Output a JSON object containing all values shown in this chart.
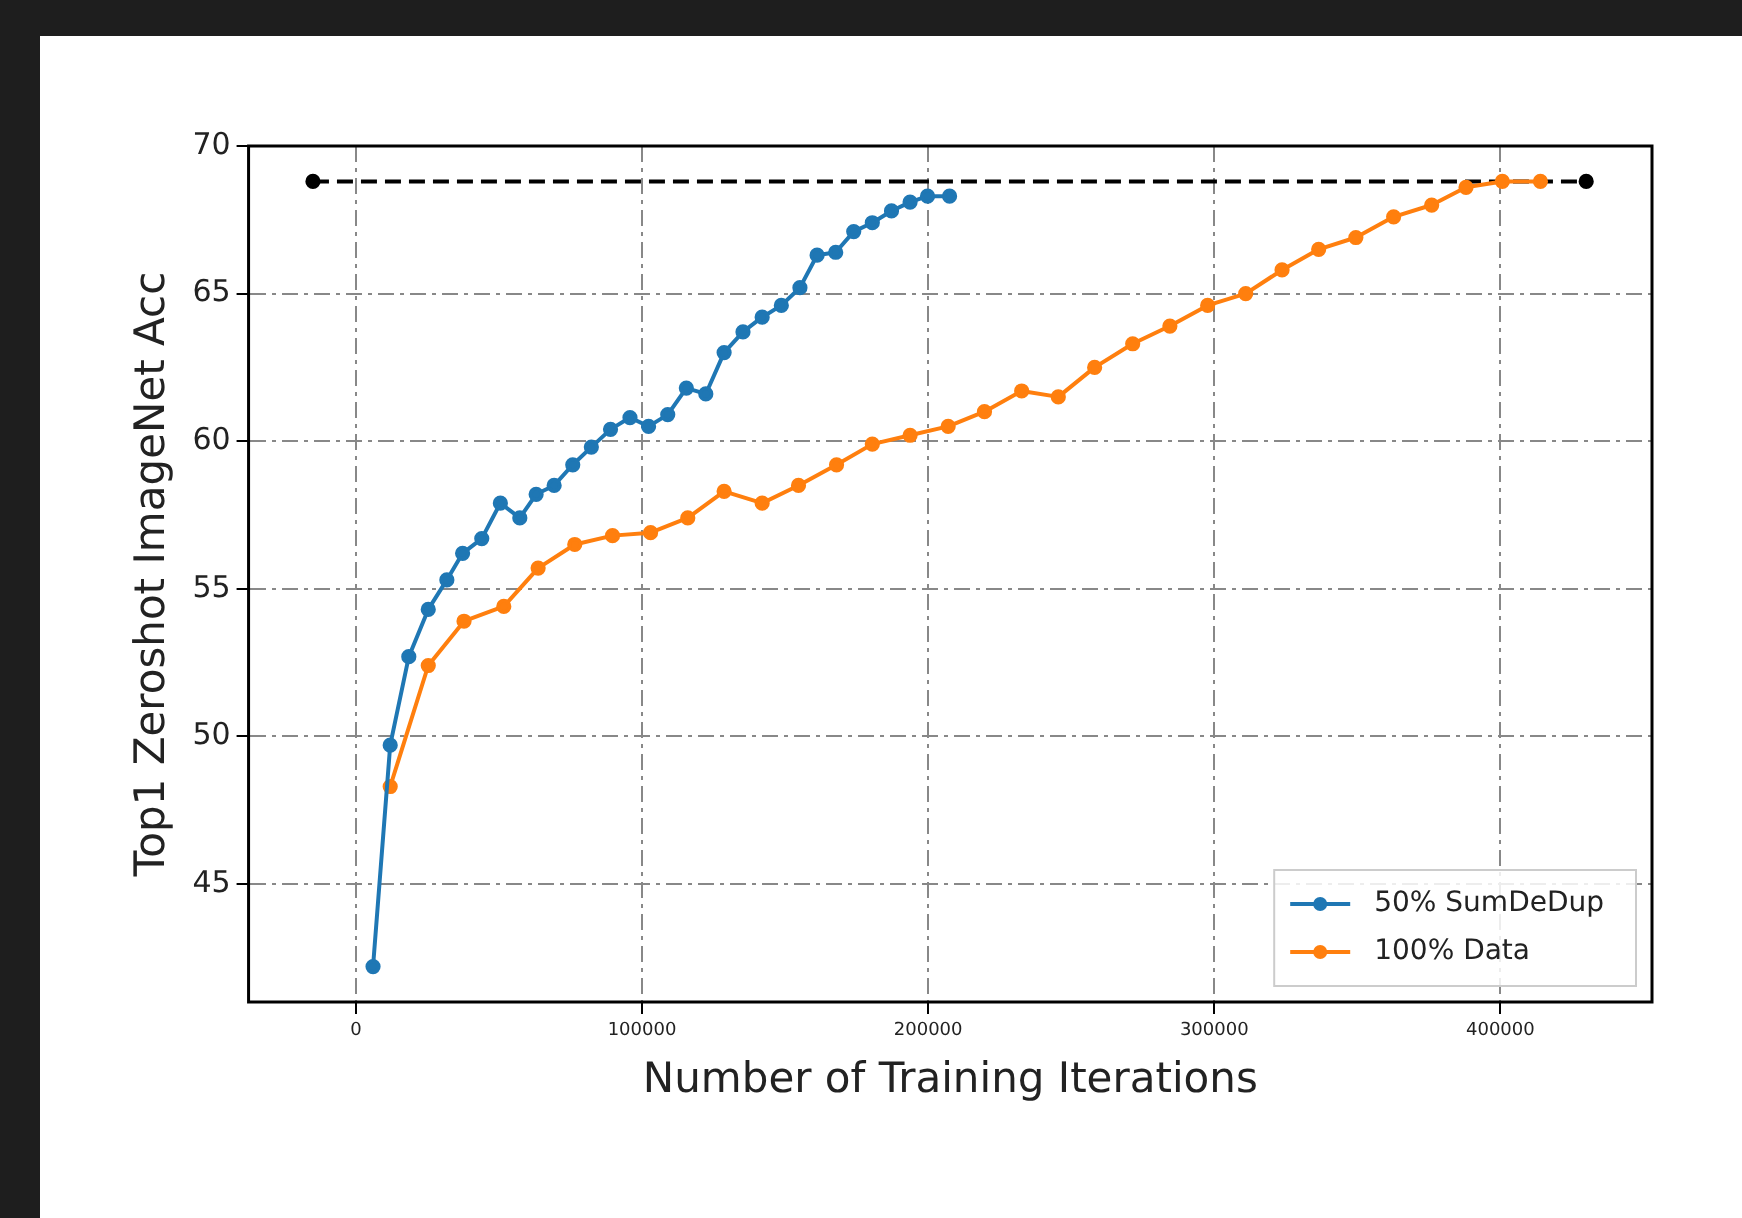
{
  "chart_data": {
    "type": "line",
    "xlabel": "Number of Training Iterations",
    "ylabel": "Top1 Zeroshot ImageNet Acc",
    "xlim": [
      -37500,
      453000
    ],
    "ylim": [
      41,
      70
    ],
    "xticks": [
      0,
      100000,
      200000,
      300000,
      400000
    ],
    "yticks": [
      45,
      50,
      55,
      60,
      65,
      70
    ],
    "grid": true,
    "legend": "bottom right",
    "marker": "circle",
    "series": [
      {
        "name": "50% SumDeDup",
        "color": "#1f77b4",
        "x": [
          6000,
          12000,
          18500,
          25300,
          31800,
          37300,
          44000,
          50500,
          57300,
          63000,
          69300,
          75800,
          82300,
          89000,
          95800,
          102300,
          109000,
          115500,
          122300,
          128700,
          135300,
          142000,
          148700,
          155200,
          161200,
          167700,
          174000,
          180500,
          187200,
          193700,
          199800,
          207500
        ],
        "values": [
          42.2,
          49.7,
          52.7,
          54.3,
          55.3,
          56.2,
          56.7,
          57.9,
          57.4,
          58.2,
          58.5,
          59.2,
          59.8,
          60.4,
          60.8,
          60.5,
          60.9,
          61.8,
          61.6,
          63.0,
          63.7,
          64.2,
          64.6,
          65.2,
          66.3,
          66.4,
          67.1,
          67.4,
          67.8,
          68.1,
          68.3,
          68.3
        ]
      },
      {
        "name": "100% Data",
        "color": "#ff7f0e",
        "x": [
          12000,
          25300,
          37800,
          51700,
          63700,
          76500,
          89700,
          103000,
          116000,
          128700,
          142000,
          154700,
          168000,
          180500,
          193700,
          207000,
          219700,
          232700,
          245500,
          258200,
          271500,
          284500,
          297700,
          311000,
          323700,
          336500,
          349500,
          362700,
          376000,
          388000,
          400700,
          414000
        ],
        "values": [
          48.3,
          52.4,
          53.9,
          54.4,
          55.7,
          56.5,
          56.8,
          56.9,
          57.4,
          58.3,
          57.9,
          58.5,
          59.2,
          59.9,
          60.2,
          60.5,
          61.0,
          61.7,
          61.5,
          62.5,
          63.3,
          63.9,
          64.6,
          65.0,
          65.8,
          66.5,
          66.9,
          67.6,
          68.0,
          68.6,
          68.8,
          68.8
        ]
      },
      {
        "color": "#000000",
        "line_style": "dashed",
        "x": [
          -15000,
          430000
        ],
        "values": [
          68.8,
          68.8
        ]
      }
    ]
  }
}
